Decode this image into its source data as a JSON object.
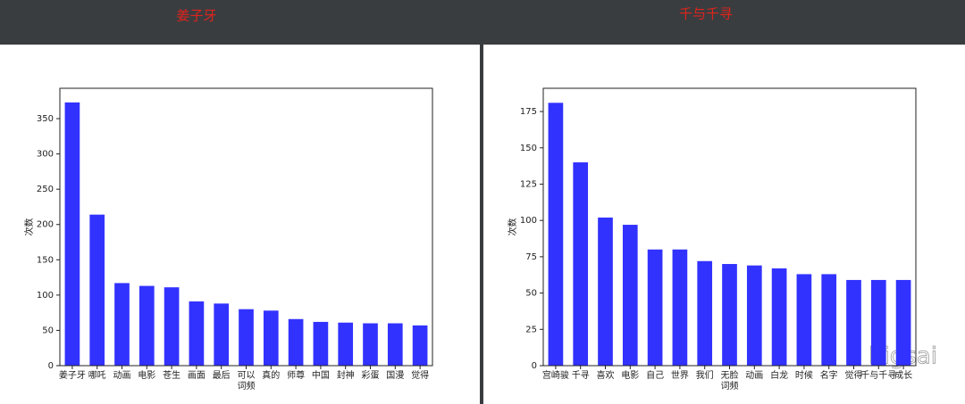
{
  "chart_data": [
    {
      "type": "bar",
      "title": "姜子牙",
      "xlabel": "词频",
      "ylabel": "次数",
      "color": "#3232ff",
      "categories": [
        "姜子牙",
        "哪吒",
        "动画",
        "电影",
        "苍生",
        "画面",
        "最后",
        "可以",
        "真的",
        "师尊",
        "中国",
        "封神",
        "彩蛋",
        "国漫",
        "觉得"
      ],
      "values": [
        373,
        214,
        117,
        113,
        111,
        91,
        88,
        80,
        78,
        66,
        62,
        61,
        60,
        60,
        57
      ],
      "ylim": [
        0,
        393
      ],
      "yticks": [
        0,
        50,
        100,
        150,
        200,
        250,
        300,
        350
      ]
    },
    {
      "type": "bar",
      "title": "千与千寻",
      "xlabel": "词频",
      "ylabel": "次数",
      "color": "#3232ff",
      "categories": [
        "宫崎骏",
        "千寻",
        "喜欢",
        "电影",
        "自己",
        "世界",
        "我们",
        "无脸",
        "动画",
        "白龙",
        "时候",
        "名字",
        "觉得",
        "千与千寻",
        "成长"
      ],
      "values": [
        181,
        140,
        102,
        97,
        80,
        80,
        72,
        70,
        69,
        67,
        63,
        63,
        59,
        59,
        59
      ],
      "ylim": [
        0,
        191
      ],
      "yticks": [
        0,
        25,
        50,
        75,
        100,
        125,
        150,
        175
      ]
    }
  ],
  "watermark": "bigsai"
}
